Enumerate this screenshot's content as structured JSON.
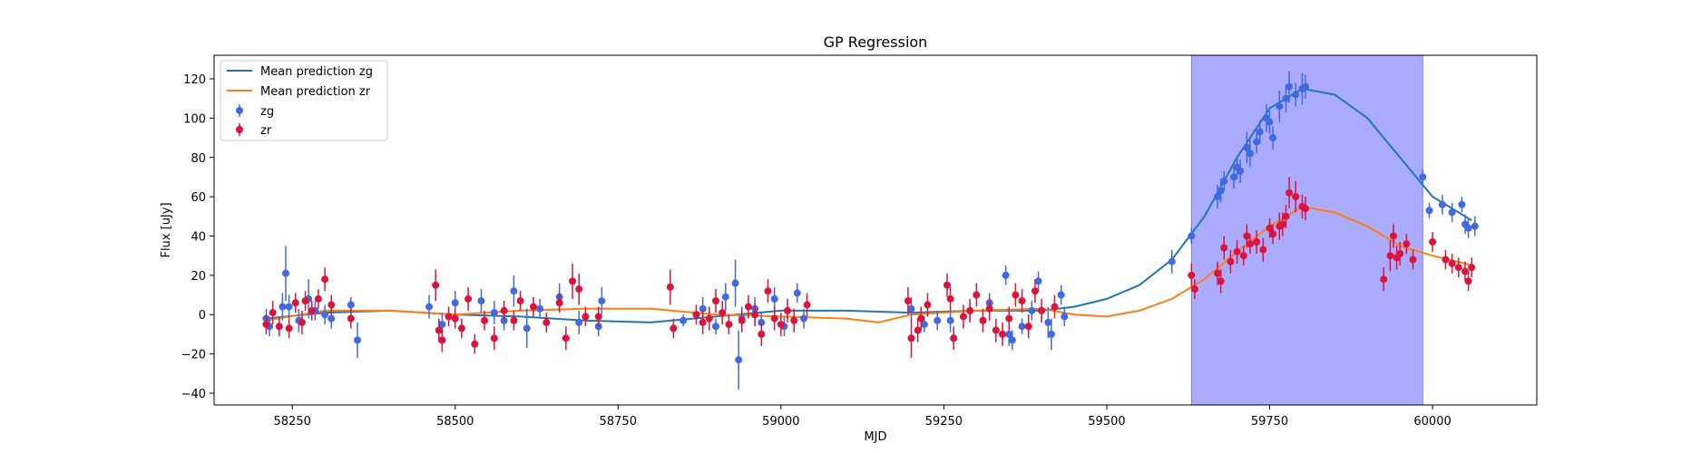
{
  "chart_data": {
    "type": "scatter",
    "title": "GP Regression",
    "xlabel": "MJD",
    "ylabel": "Flux [uJy]",
    "xlim": [
      58130,
      60160
    ],
    "ylim": [
      -46,
      132
    ],
    "xticks": [
      58250,
      58500,
      58750,
      59000,
      59250,
      59500,
      59750,
      60000
    ],
    "yticks": [
      -40,
      -20,
      0,
      20,
      40,
      60,
      80,
      100,
      120
    ],
    "grid": false,
    "legend_position": "upper-left",
    "shaded_region": {
      "x_start": 59630,
      "x_end": 59985,
      "color": "#0000ff",
      "alpha": 0.33
    },
    "lines": [
      {
        "name": "Mean prediction zg",
        "color": "#1f77b4",
        "x": [
          58210,
          58300,
          58400,
          58500,
          58600,
          58700,
          58800,
          58900,
          59000,
          59100,
          59200,
          59300,
          59400,
          59450,
          59500,
          59550,
          59600,
          59650,
          59700,
          59750,
          59800,
          59850,
          59900,
          59950,
          60000,
          60050,
          60060
        ],
        "y": [
          -2,
          1,
          2,
          0,
          -1,
          -3,
          -4,
          -1,
          2,
          2,
          1,
          2,
          2,
          4,
          8,
          15,
          28,
          50,
          80,
          105,
          115,
          112,
          100,
          80,
          60,
          50,
          48
        ]
      },
      {
        "name": "Mean prediction zr",
        "color": "#ff7f0e",
        "x": [
          58210,
          58300,
          58400,
          58500,
          58600,
          58700,
          58800,
          58900,
          59000,
          59100,
          59150,
          59200,
          59300,
          59400,
          59450,
          59500,
          59550,
          59600,
          59650,
          59700,
          59750,
          59800,
          59850,
          59900,
          59950,
          60000,
          60050,
          60060
        ],
        "y": [
          -3,
          2,
          2,
          0,
          2,
          3,
          3,
          0,
          -1,
          -2,
          -4,
          0,
          2,
          3,
          0,
          -1,
          2,
          8,
          18,
          32,
          45,
          55,
          52,
          45,
          35,
          30,
          26,
          25
        ]
      }
    ],
    "series": [
      {
        "name": "zg",
        "color": "#4169e1",
        "points": [
          [
            58210,
            -2,
            5
          ],
          [
            58215,
            -6,
            5
          ],
          [
            58235,
            4,
            7
          ],
          [
            58240,
            21,
            14
          ],
          [
            58245,
            4,
            6
          ],
          [
            58260,
            -3,
            6
          ],
          [
            58275,
            8,
            10
          ],
          [
            58285,
            2,
            5
          ],
          [
            58300,
            0,
            5
          ],
          [
            58310,
            -2,
            5
          ],
          [
            58340,
            5,
            4
          ],
          [
            58350,
            -13,
            9
          ],
          [
            58460,
            4,
            6
          ],
          [
            58480,
            -5,
            6
          ],
          [
            58500,
            6,
            6
          ],
          [
            58540,
            7,
            6
          ],
          [
            58560,
            1,
            6
          ],
          [
            58575,
            -3,
            5
          ],
          [
            58590,
            12,
            8
          ],
          [
            58610,
            -7,
            10
          ],
          [
            58630,
            3,
            5
          ],
          [
            58660,
            9,
            7
          ],
          [
            58690,
            -4,
            6
          ],
          [
            58725,
            7,
            7
          ],
          [
            58720,
            -6,
            5
          ],
          [
            58850,
            -3,
            3
          ],
          [
            58880,
            3,
            6
          ],
          [
            58900,
            -6,
            4
          ],
          [
            58915,
            9,
            7
          ],
          [
            58930,
            16,
            12
          ],
          [
            58935,
            -23,
            15
          ],
          [
            58940,
            -2,
            6
          ],
          [
            58960,
            3,
            6
          ],
          [
            58970,
            -4,
            5
          ],
          [
            58990,
            8,
            6
          ],
          [
            59005,
            -6,
            5
          ],
          [
            59025,
            11,
            5
          ],
          [
            59035,
            -2,
            5
          ],
          [
            59200,
            3,
            6
          ],
          [
            59220,
            -5,
            4
          ],
          [
            59240,
            -3,
            5
          ],
          [
            59260,
            -3,
            6
          ],
          [
            59290,
            2,
            4
          ],
          [
            59320,
            6,
            5
          ],
          [
            59345,
            20,
            5
          ],
          [
            59350,
            -10,
            6
          ],
          [
            59355,
            -13,
            5
          ],
          [
            59370,
            -6,
            4
          ],
          [
            59385,
            2,
            5
          ],
          [
            59395,
            17,
            5
          ],
          [
            59410,
            -4,
            8
          ],
          [
            59415,
            -10,
            8
          ],
          [
            59430,
            10,
            5
          ],
          [
            59435,
            -1,
            5
          ],
          [
            59600,
            27,
            6
          ],
          [
            59630,
            40,
            4
          ],
          [
            59670,
            60,
            6
          ],
          [
            59675,
            63,
            6
          ],
          [
            59680,
            68,
            5
          ],
          [
            59695,
            70,
            6
          ],
          [
            59700,
            75,
            6
          ],
          [
            59705,
            73,
            6
          ],
          [
            59715,
            85,
            8
          ],
          [
            59720,
            82,
            7
          ],
          [
            59730,
            88,
            6
          ],
          [
            59735,
            93,
            6
          ],
          [
            59745,
            100,
            7
          ],
          [
            59750,
            98,
            6
          ],
          [
            59755,
            90,
            6
          ],
          [
            59765,
            106,
            8
          ],
          [
            59775,
            110,
            7
          ],
          [
            59780,
            116,
            8
          ],
          [
            59790,
            112,
            6
          ],
          [
            59800,
            115,
            8
          ],
          [
            59805,
            116,
            6
          ],
          [
            59985,
            70,
            4
          ],
          [
            59995,
            53,
            4
          ],
          [
            60015,
            56,
            5
          ],
          [
            60030,
            52,
            5
          ],
          [
            60045,
            56,
            4
          ],
          [
            60050,
            46,
            5
          ],
          [
            60055,
            44,
            5
          ],
          [
            60065,
            45,
            5
          ]
        ]
      },
      {
        "name": "zr",
        "color": "#dc143c",
        "points": [
          [
            58210,
            -5,
            5
          ],
          [
            58220,
            1,
            6
          ],
          [
            58230,
            -6,
            5
          ],
          [
            58245,
            -7,
            5
          ],
          [
            58255,
            6,
            5
          ],
          [
            58265,
            -4,
            6
          ],
          [
            58270,
            7,
            5
          ],
          [
            58280,
            2,
            5
          ],
          [
            58290,
            8,
            5
          ],
          [
            58300,
            18,
            6
          ],
          [
            58310,
            5,
            5
          ],
          [
            58340,
            -2,
            5
          ],
          [
            58470,
            15,
            8
          ],
          [
            58475,
            -8,
            6
          ],
          [
            58480,
            -13,
            6
          ],
          [
            58490,
            -1,
            5
          ],
          [
            58500,
            -2,
            5
          ],
          [
            58510,
            -7,
            5
          ],
          [
            58520,
            8,
            6
          ],
          [
            58530,
            -15,
            5
          ],
          [
            58545,
            -3,
            5
          ],
          [
            58560,
            -12,
            6
          ],
          [
            58575,
            2,
            5
          ],
          [
            58590,
            -3,
            5
          ],
          [
            58600,
            7,
            5
          ],
          [
            58620,
            4,
            5
          ],
          [
            58640,
            -4,
            5
          ],
          [
            58660,
            6,
            5
          ],
          [
            58670,
            -12,
            6
          ],
          [
            58680,
            17,
            9
          ],
          [
            58690,
            13,
            8
          ],
          [
            58700,
            -1,
            5
          ],
          [
            58720,
            -1,
            5
          ],
          [
            58830,
            14,
            9
          ],
          [
            58835,
            -7,
            5
          ],
          [
            58870,
            0,
            5
          ],
          [
            58880,
            -4,
            6
          ],
          [
            58890,
            -2,
            6
          ],
          [
            58900,
            7,
            6
          ],
          [
            58910,
            1,
            6
          ],
          [
            58920,
            -5,
            5
          ],
          [
            58940,
            -3,
            6
          ],
          [
            58950,
            4,
            6
          ],
          [
            58960,
            0,
            6
          ],
          [
            58970,
            -10,
            6
          ],
          [
            58980,
            12,
            6
          ],
          [
            58990,
            -2,
            6
          ],
          [
            59000,
            -5,
            6
          ],
          [
            59010,
            2,
            6
          ],
          [
            59020,
            -3,
            6
          ],
          [
            59040,
            5,
            6
          ],
          [
            59195,
            7,
            7
          ],
          [
            59200,
            -12,
            10
          ],
          [
            59210,
            -8,
            6
          ],
          [
            59215,
            -2,
            6
          ],
          [
            59225,
            5,
            6
          ],
          [
            59255,
            15,
            6
          ],
          [
            59260,
            8,
            6
          ],
          [
            59265,
            -12,
            6
          ],
          [
            59280,
            -1,
            6
          ],
          [
            59290,
            2,
            6
          ],
          [
            59300,
            10,
            6
          ],
          [
            59310,
            -3,
            6
          ],
          [
            59320,
            3,
            6
          ],
          [
            59330,
            -8,
            6
          ],
          [
            59340,
            -10,
            6
          ],
          [
            59350,
            -2,
            6
          ],
          [
            59360,
            10,
            6
          ],
          [
            59370,
            7,
            6
          ],
          [
            59380,
            -6,
            6
          ],
          [
            59390,
            12,
            6
          ],
          [
            59400,
            2,
            6
          ],
          [
            59420,
            4,
            6
          ],
          [
            59630,
            20,
            6
          ],
          [
            59635,
            13,
            5
          ],
          [
            59670,
            21,
            6
          ],
          [
            59675,
            17,
            6
          ],
          [
            59680,
            34,
            6
          ],
          [
            59690,
            27,
            6
          ],
          [
            59700,
            32,
            6
          ],
          [
            59710,
            30,
            5
          ],
          [
            59715,
            40,
            6
          ],
          [
            59720,
            36,
            5
          ],
          [
            59730,
            37,
            6
          ],
          [
            59740,
            33,
            6
          ],
          [
            59750,
            44,
            5
          ],
          [
            59755,
            41,
            5
          ],
          [
            59765,
            45,
            7
          ],
          [
            59770,
            46,
            6
          ],
          [
            59775,
            50,
            6
          ],
          [
            59780,
            62,
            8
          ],
          [
            59790,
            60,
            8
          ],
          [
            59800,
            55,
            6
          ],
          [
            59805,
            54,
            6
          ],
          [
            59925,
            18,
            6
          ],
          [
            59935,
            30,
            8
          ],
          [
            59940,
            40,
            6
          ],
          [
            59945,
            29,
            6
          ],
          [
            59950,
            31,
            6
          ],
          [
            59960,
            36,
            5
          ],
          [
            59970,
            28,
            5
          ],
          [
            60000,
            37,
            5
          ],
          [
            60020,
            28,
            5
          ],
          [
            60030,
            26,
            5
          ],
          [
            60040,
            24,
            5
          ],
          [
            60050,
            22,
            5
          ],
          [
            60055,
            17,
            5
          ],
          [
            60060,
            24,
            5
          ]
        ]
      }
    ]
  }
}
